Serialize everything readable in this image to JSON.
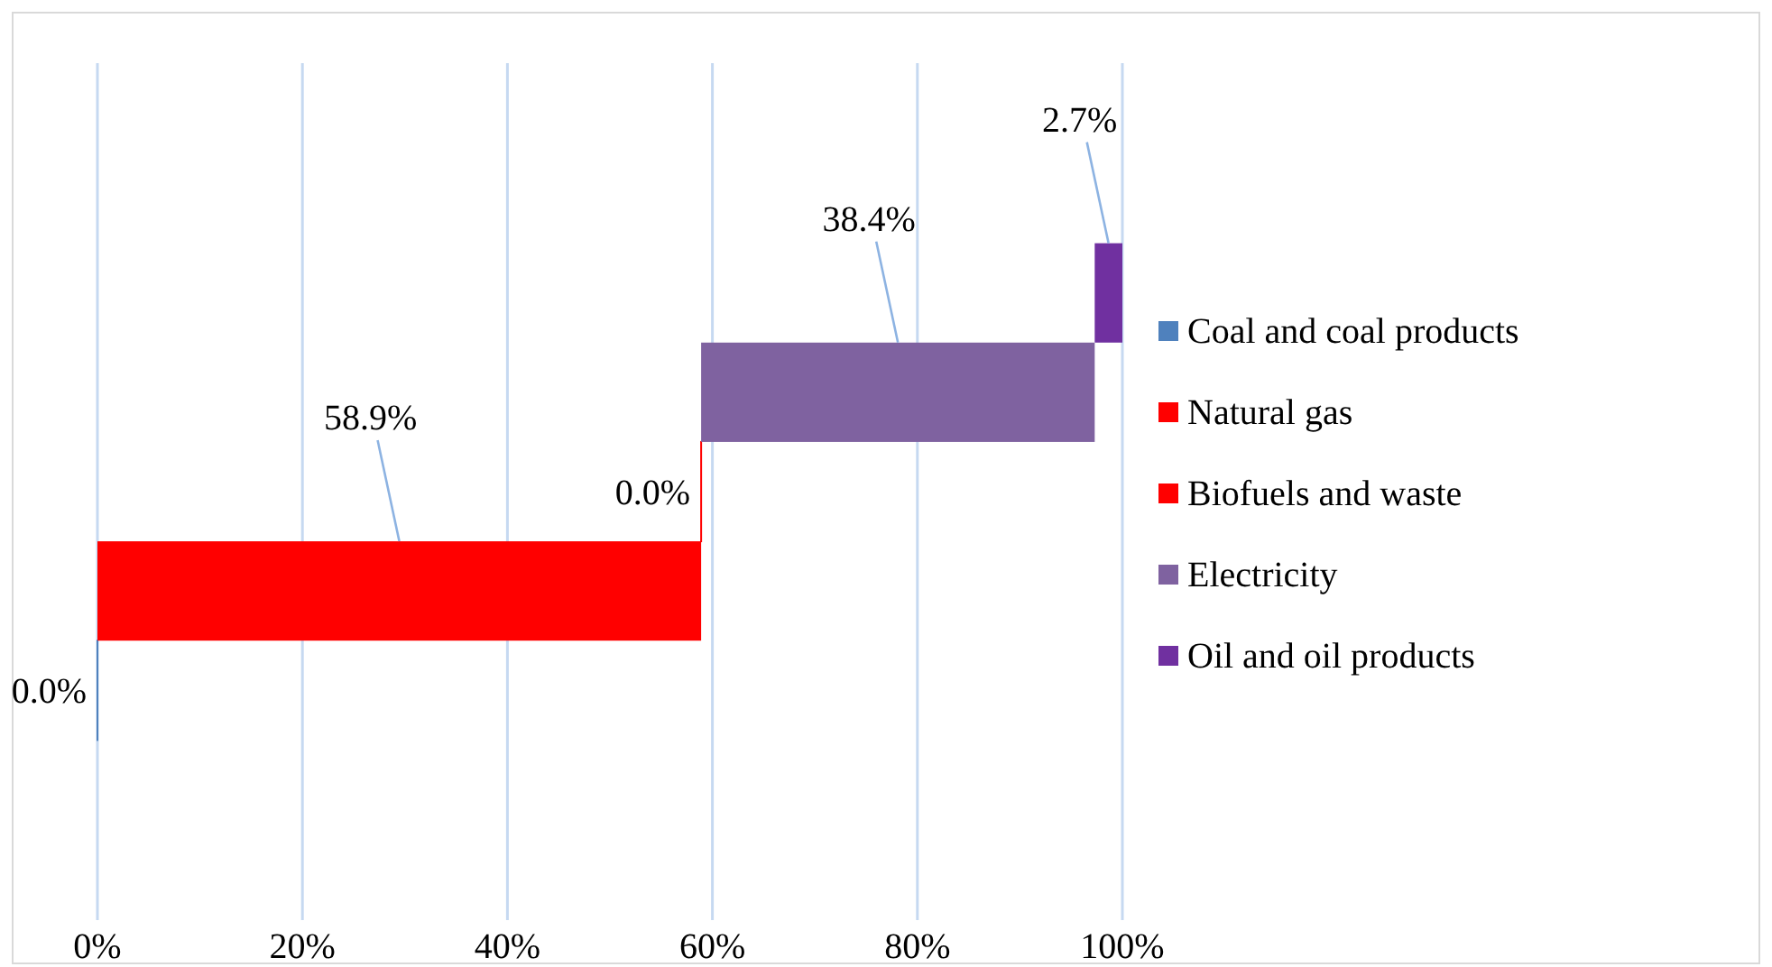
{
  "chart_data": {
    "type": "bar",
    "orientation": "horizontal",
    "categories": [
      null
    ],
    "series": [
      {
        "name": "Coal and coal products",
        "color": "#4f81bd",
        "values": [
          0
        ],
        "base": [
          0
        ],
        "value_labels": [
          "0.0%"
        ]
      },
      {
        "name": "Natural gas",
        "color": "#ff0000",
        "values": [
          58.9
        ],
        "base": [
          0
        ],
        "value_labels": [
          "58.9%"
        ]
      },
      {
        "name": "Biofuels and waste",
        "color": "#ff0000",
        "values": [
          0
        ],
        "base": [
          58.9
        ],
        "value_labels": [
          "0.0%"
        ]
      },
      {
        "name": "Electricity",
        "color": "#7f62a0",
        "values": [
          38.4
        ],
        "base": [
          58.9
        ],
        "value_labels": [
          "38.4%"
        ]
      },
      {
        "name": "Oil and oil products",
        "color": "#7030a0",
        "values": [
          2.7
        ],
        "base": [
          97.3
        ],
        "value_labels": [
          "2.7%"
        ]
      }
    ],
    "xlim": [
      0,
      100
    ],
    "xticks": [
      {
        "value": 0,
        "label": "0%"
      },
      {
        "value": 20,
        "label": "20%"
      },
      {
        "value": 40,
        "label": "40%"
      },
      {
        "value": 60,
        "label": "60%"
      },
      {
        "value": 80,
        "label": "80%"
      },
      {
        "value": 100,
        "label": "100%"
      }
    ],
    "grid": "x",
    "legend": "right"
  }
}
